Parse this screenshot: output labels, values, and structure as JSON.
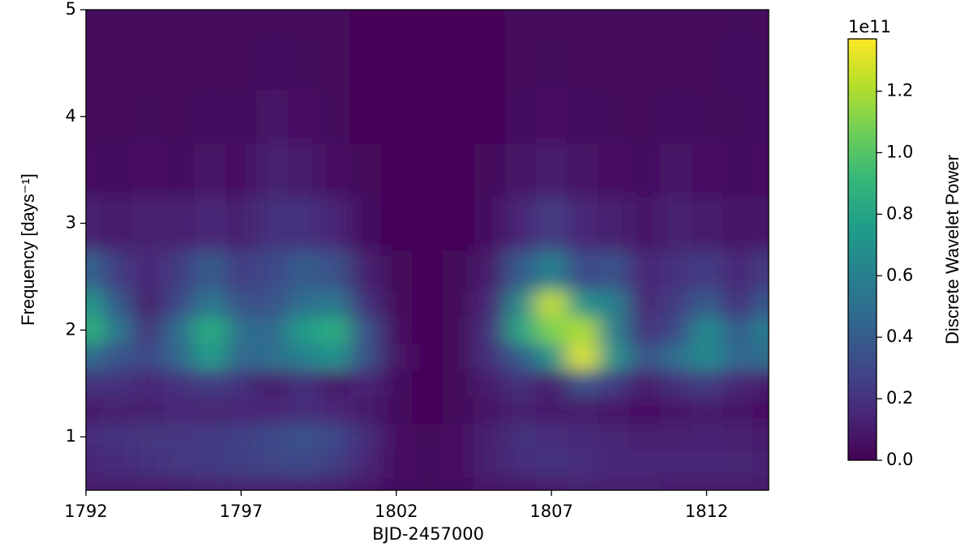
{
  "chart_data": {
    "type": "heatmap",
    "xlabel": "BJD-2457000",
    "ylabel": "Frequency [days⁻¹]",
    "colorbar_label": "Discrete Wavelet Power",
    "colorbar_offset": "1e11",
    "colormap": "viridis",
    "x": [
      1792,
      1793,
      1794,
      1795,
      1796,
      1797,
      1798,
      1799,
      1800,
      1801,
      1802,
      1803,
      1804,
      1805,
      1806,
      1807,
      1808,
      1809,
      1810,
      1811,
      1812,
      1813,
      1814
    ],
    "y": [
      0.5,
      0.75,
      1.0,
      1.25,
      1.5,
      1.75,
      2.0,
      2.25,
      2.5,
      3.0,
      3.5,
      4.0,
      4.5,
      5.0
    ],
    "z": [
      [
        0.1,
        0.1,
        0.1,
        0.1,
        0.12,
        0.12,
        0.12,
        0.12,
        0.1,
        0.08,
        0.05,
        0.04,
        0.05,
        0.07,
        0.08,
        0.1,
        0.12,
        0.12,
        0.12,
        0.1,
        0.1,
        0.1,
        0.1
      ],
      [
        0.15,
        0.17,
        0.2,
        0.22,
        0.24,
        0.26,
        0.28,
        0.3,
        0.25,
        0.15,
        0.06,
        0.04,
        0.06,
        0.12,
        0.18,
        0.2,
        0.18,
        0.15,
        0.15,
        0.15,
        0.15,
        0.14,
        0.13
      ],
      [
        0.18,
        0.2,
        0.22,
        0.22,
        0.24,
        0.26,
        0.3,
        0.35,
        0.3,
        0.18,
        0.06,
        0.03,
        0.06,
        0.12,
        0.2,
        0.18,
        0.16,
        0.14,
        0.12,
        0.12,
        0.13,
        0.12,
        0.1
      ],
      [
        0.1,
        0.12,
        0.12,
        0.15,
        0.14,
        0.15,
        0.15,
        0.18,
        0.15,
        0.1,
        0.04,
        0.02,
        0.03,
        0.08,
        0.12,
        0.1,
        0.1,
        0.08,
        0.06,
        0.08,
        0.1,
        0.08,
        0.06
      ],
      [
        0.2,
        0.2,
        0.15,
        0.2,
        0.25,
        0.2,
        0.1,
        0.2,
        0.08,
        0.15,
        0.05,
        0.02,
        0.03,
        0.1,
        0.2,
        0.1,
        0.35,
        0.25,
        0.1,
        0.2,
        0.25,
        0.15,
        0.1
      ],
      [
        0.5,
        0.35,
        0.3,
        0.45,
        0.75,
        0.45,
        0.5,
        0.6,
        0.7,
        0.35,
        0.08,
        0.02,
        0.03,
        0.2,
        0.4,
        0.7,
        1.3,
        0.7,
        0.35,
        0.5,
        0.65,
        0.45,
        0.5
      ],
      [
        0.9,
        0.55,
        0.2,
        0.5,
        0.85,
        0.5,
        0.45,
        0.75,
        0.85,
        0.35,
        0.06,
        0.02,
        0.03,
        0.2,
        0.8,
        1.1,
        1.2,
        0.6,
        0.2,
        0.3,
        0.65,
        0.4,
        0.6
      ],
      [
        0.75,
        0.4,
        0.1,
        0.3,
        0.55,
        0.35,
        0.35,
        0.5,
        0.55,
        0.2,
        0.04,
        0.02,
        0.03,
        0.15,
        0.65,
        1.25,
        0.7,
        0.6,
        0.15,
        0.25,
        0.4,
        0.2,
        0.4
      ],
      [
        0.45,
        0.25,
        0.15,
        0.25,
        0.4,
        0.25,
        0.3,
        0.4,
        0.35,
        0.12,
        0.03,
        0.02,
        0.03,
        0.1,
        0.4,
        0.6,
        0.3,
        0.35,
        0.15,
        0.2,
        0.25,
        0.15,
        0.25
      ],
      [
        0.12,
        0.1,
        0.12,
        0.12,
        0.15,
        0.12,
        0.2,
        0.2,
        0.15,
        0.05,
        0.02,
        0.02,
        0.02,
        0.05,
        0.15,
        0.25,
        0.15,
        0.12,
        0.08,
        0.12,
        0.1,
        0.08,
        0.08
      ],
      [
        0.05,
        0.05,
        0.06,
        0.05,
        0.08,
        0.06,
        0.12,
        0.1,
        0.06,
        0.03,
        0.02,
        0.02,
        0.02,
        0.03,
        0.08,
        0.1,
        0.08,
        0.06,
        0.05,
        0.08,
        0.06,
        0.05,
        0.06
      ],
      [
        0.03,
        0.03,
        0.04,
        0.03,
        0.05,
        0.04,
        0.08,
        0.06,
        0.04,
        0.02,
        0.02,
        0.02,
        0.02,
        0.02,
        0.05,
        0.06,
        0.05,
        0.04,
        0.03,
        0.05,
        0.04,
        0.04,
        0.05
      ],
      [
        0.03,
        0.03,
        0.03,
        0.03,
        0.03,
        0.03,
        0.05,
        0.04,
        0.03,
        0.02,
        0.02,
        0.02,
        0.02,
        0.02,
        0.03,
        0.04,
        0.03,
        0.03,
        0.03,
        0.03,
        0.03,
        0.05,
        0.04
      ],
      [
        0.03,
        0.03,
        0.03,
        0.03,
        0.03,
        0.03,
        0.03,
        0.03,
        0.03,
        0.02,
        0.02,
        0.02,
        0.02,
        0.02,
        0.03,
        0.03,
        0.03,
        0.03,
        0.03,
        0.03,
        0.03,
        0.04,
        0.03
      ]
    ],
    "xlim": [
      1792,
      1814
    ],
    "xticks": [
      1792,
      1797,
      1802,
      1807,
      1812
    ],
    "ylim": [
      0.5,
      5
    ],
    "yticks": [
      1,
      2,
      3,
      4,
      5
    ],
    "clim": [
      0,
      1.37
    ],
    "cticks": [
      {
        "value": 0,
        "label": "0.0"
      },
      {
        "value": 0.2,
        "label": "0.2"
      },
      {
        "value": 0.4,
        "label": "0.4"
      },
      {
        "value": 0.6,
        "label": "0.6"
      },
      {
        "value": 0.8,
        "label": "0.8"
      },
      {
        "value": 1.0,
        "label": "1.0"
      },
      {
        "value": 1.2,
        "label": "1.2"
      }
    ]
  }
}
